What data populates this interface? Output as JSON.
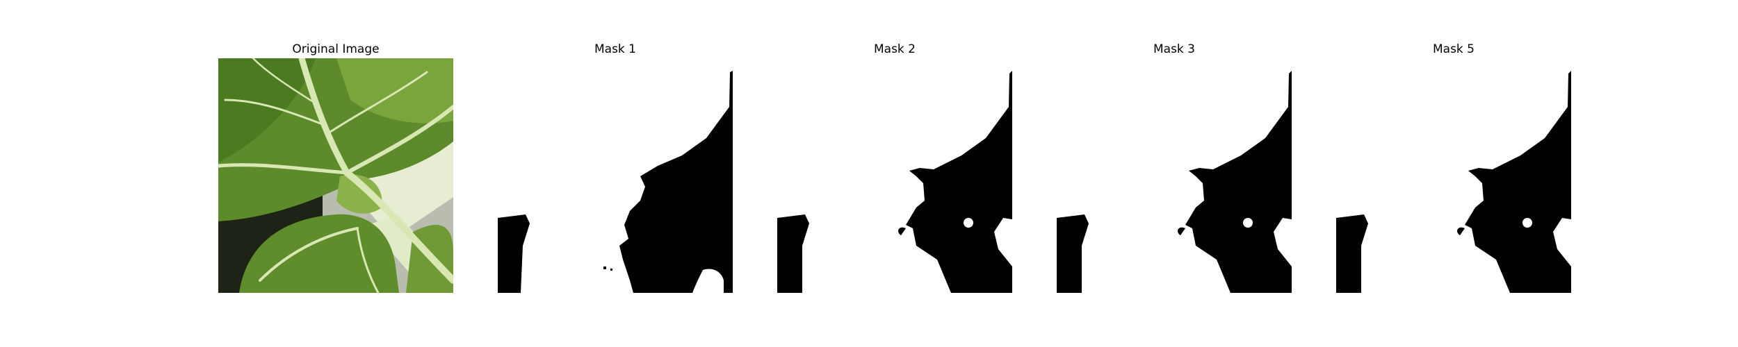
{
  "panels": [
    {
      "title": "Original Image",
      "kind": "photo"
    },
    {
      "title": "Mask 1",
      "kind": "mask"
    },
    {
      "title": "Mask 2",
      "kind": "mask"
    },
    {
      "title": "Mask 3",
      "kind": "mask"
    },
    {
      "title": "Mask 5",
      "kind": "mask"
    }
  ],
  "colors": {
    "background": "#ffffff",
    "mask_fill": "#000000",
    "leaf_dark": "#3f6a1e",
    "leaf_mid": "#6f9a36",
    "leaf_light": "#98bb5a",
    "vein": "#d8e7b4",
    "stem": "#e6edd2"
  }
}
